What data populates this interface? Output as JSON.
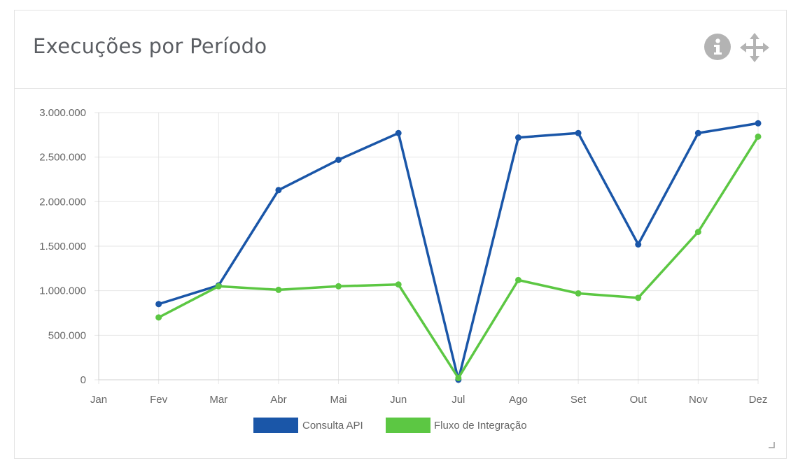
{
  "panel": {
    "title": "Execuções por Período"
  },
  "icons": {
    "info": "info-circle-icon",
    "move": "move-arrows-icon"
  },
  "colors": {
    "series1": "#1a56a8",
    "series2": "#5cc743",
    "grid": "#e6e6e6",
    "title": "#5b5e63",
    "icon": "#b3b3b3"
  },
  "chart_data": {
    "type": "line",
    "title": "",
    "xlabel": "",
    "ylabel": "",
    "categories": [
      "Jan",
      "Fev",
      "Mar",
      "Abr",
      "Mai",
      "Jun",
      "Jul",
      "Ago",
      "Set",
      "Out",
      "Nov",
      "Dez"
    ],
    "y_ticks": [
      "0",
      "500.000",
      "1.000.000",
      "1.500.000",
      "2.000.000",
      "2.500.000",
      "3.000.000"
    ],
    "ylim": [
      0,
      3000000
    ],
    "grid": true,
    "legend_position": "bottom",
    "series": [
      {
        "name": "Consulta API",
        "color": "#1a56a8",
        "values": [
          null,
          850000,
          1060000,
          2130000,
          2470000,
          2770000,
          0,
          2720000,
          2770000,
          1520000,
          2770000,
          2880000
        ]
      },
      {
        "name": "Fluxo de Integração",
        "color": "#5cc743",
        "values": [
          null,
          700000,
          1050000,
          1010000,
          1050000,
          1070000,
          20000,
          1120000,
          970000,
          920000,
          1660000,
          2730000
        ]
      }
    ]
  }
}
